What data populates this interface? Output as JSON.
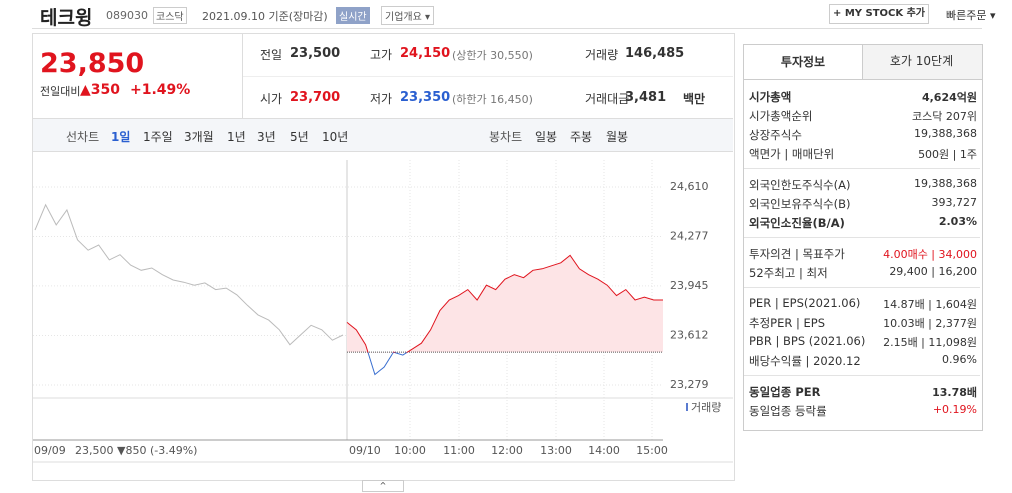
{
  "header": {
    "name": "테크윙",
    "code": "089030",
    "market": "코스닥",
    "date": "2021.09.10 기준(장마감)",
    "realtime": "실시간",
    "company_info": "기업개요",
    "mystock": "+ MY STOCK 추가",
    "quick_order": "빠른주문"
  },
  "price": {
    "current": "23,850",
    "change_label": "전일대비",
    "change": "▲350",
    "change_pct": "+1.49%"
  },
  "summary": [
    [
      {
        "label": "전일",
        "value": "23,500"
      },
      {
        "label": "고가",
        "value": "24,150",
        "extra": "(상한가 30,550)"
      },
      {
        "label": "거래량",
        "value": "146,485"
      }
    ],
    [
      {
        "label": "시가",
        "value": "23,700"
      },
      {
        "label": "저가",
        "value": "23,350",
        "extra": "(하한가 16,450)"
      },
      {
        "label": "거래대금",
        "value": "3,481",
        "extra": "백만"
      }
    ]
  ],
  "chart_tabs": {
    "line_label": "선차트",
    "line_periods": [
      "1일",
      "1주일",
      "3개월",
      "1년",
      "3년",
      "5년",
      "10년"
    ],
    "candle_label": "봉차트",
    "candle_periods": [
      "일봉",
      "주봉",
      "월봉"
    ]
  },
  "chart": {
    "type": "line",
    "ylim": [
      23212,
      24791
    ],
    "yticks": [
      {
        "value": 24610,
        "label": "24,610"
      },
      {
        "value": 24277,
        "label": "24,277"
      },
      {
        "value": 23945,
        "label": "23,945"
      },
      {
        "value": 23612,
        "label": "23,612"
      },
      {
        "value": 23279,
        "label": "23,279"
      }
    ],
    "previous_close": 23500,
    "prev_day": {
      "color": "#bbbbbb",
      "values": [
        24320,
        24490,
        24355,
        24455,
        24255,
        24185,
        24220,
        24120,
        24155,
        24085,
        24050,
        24065,
        24020,
        23985,
        23970,
        23950,
        23965,
        23920,
        23930,
        23885,
        23815,
        23750,
        23715,
        23650,
        23550,
        23615,
        23680,
        23650,
        23580,
        23615
      ]
    },
    "today": {
      "up_color": "#e0141e",
      "down_color": "#3a6fd0",
      "values": [
        23700,
        23650,
        23550,
        23350,
        23400,
        23500,
        23480,
        23520,
        23560,
        23650,
        23780,
        23850,
        23880,
        23920,
        23850,
        23950,
        23920,
        23990,
        24020,
        24000,
        24050,
        24060,
        24080,
        24100,
        24150,
        24060,
        24020,
        23990,
        23950,
        23880,
        23920,
        23850,
        23870,
        23850,
        23850
      ]
    },
    "volume_label": "거래량",
    "prev_date": "09/09",
    "prev_summary": "23,500 ▼850 (-3.49%)",
    "today_date": "09/10",
    "times": [
      "10:00",
      "11:00",
      "12:00",
      "13:00",
      "14:00",
      "15:00"
    ]
  },
  "info_panel": {
    "tabs": [
      "투자정보",
      "호가 10단계"
    ],
    "groups": [
      [
        {
          "label": "시가총액",
          "value": "4,624억원",
          "style": "bold"
        },
        {
          "label": "시가총액순위",
          "value": "코스닥 207위"
        },
        {
          "label": "상장주식수",
          "value": "19,388,368"
        },
        {
          "label": "액면가 | 매매단위",
          "value": "500원 | 1주"
        }
      ],
      [
        {
          "label": "외국인한도주식수(A)",
          "value": "19,388,368"
        },
        {
          "label": "외국인보유주식수(B)",
          "value": "393,727"
        },
        {
          "label": "외국인소진율(B/A)",
          "value": "2.03%",
          "style": "bold"
        }
      ],
      [
        {
          "label": "투자의견 | 목표주가",
          "value": "4.00매수 | 34,000",
          "style": "red"
        },
        {
          "label": "52주최고 | 최저",
          "value": "29,400 | 16,200"
        }
      ],
      [
        {
          "label": "PER | EPS(2021.06)",
          "value": "14.87배 | 1,604원"
        },
        {
          "label": "추정PER | EPS",
          "value": "10.03배 | 2,377원"
        },
        {
          "label": "PBR | BPS (2021.06)",
          "value": "2.15배 | 11,098원"
        },
        {
          "label": "배당수익률 | 2020.12",
          "value": "0.96%"
        }
      ],
      [
        {
          "label": "동일업종 PER",
          "value": "13.78배",
          "style": "bold"
        },
        {
          "label": "동일업종 등락률",
          "value": "+0.19%",
          "style": "red"
        }
      ]
    ]
  }
}
